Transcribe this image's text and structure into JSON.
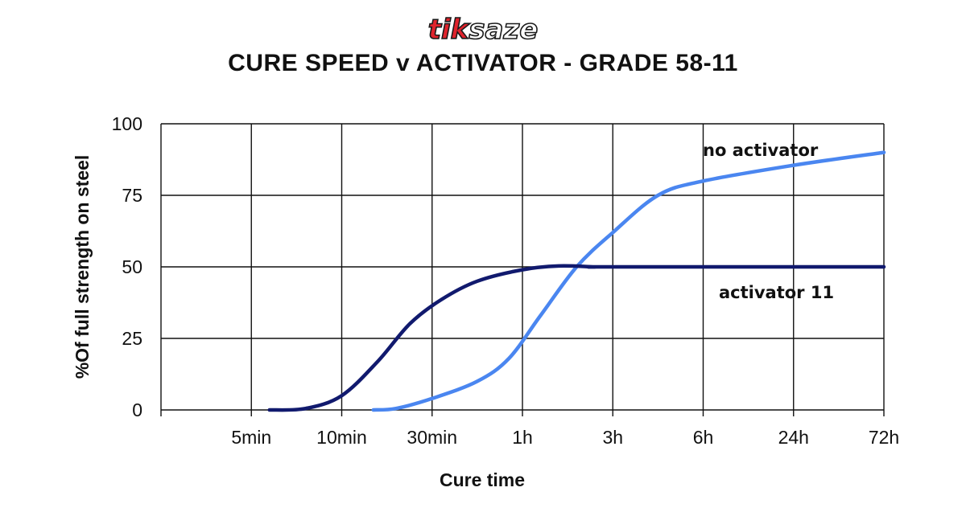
{
  "brand": {
    "logo_text": "tiksaze",
    "logo_part1": "tik",
    "logo_part2": "saze",
    "color1": "#e0232c",
    "color2": "#ffffff",
    "outline": "#1a1a1a"
  },
  "chart_data": {
    "type": "line",
    "title": "CURE SPEED v ACTIVATOR - GRADE 58-11",
    "xlabel": "Cure time",
    "ylabel": "%Of full  strength on steel",
    "categories": [
      "",
      "5min",
      "10min",
      "30min",
      "1h",
      "3h",
      "6h",
      "24h",
      "72h"
    ],
    "ylim": [
      0,
      100
    ],
    "yticks": [
      0,
      25,
      50,
      75,
      100
    ],
    "grid": true,
    "series": [
      {
        "name": "no activator",
        "color": "#4a86f0",
        "points": [
          [
            2.35,
            0
          ],
          [
            2.6,
            0.5
          ],
          [
            3,
            4
          ],
          [
            3.5,
            10
          ],
          [
            3.85,
            18
          ],
          [
            4.2,
            33
          ],
          [
            4.6,
            50
          ],
          [
            5,
            62
          ],
          [
            5.5,
            75
          ],
          [
            6,
            80
          ],
          [
            7,
            85.5
          ],
          [
            8,
            90
          ]
        ]
      },
      {
        "name": "activator 11",
        "color": "#111a6e",
        "points": [
          [
            1.2,
            0
          ],
          [
            1.6,
            0.5
          ],
          [
            2,
            5
          ],
          [
            2.4,
            17
          ],
          [
            2.75,
            30
          ],
          [
            3.1,
            38.5
          ],
          [
            3.5,
            45
          ],
          [
            4,
            49
          ],
          [
            4.4,
            50.3
          ],
          [
            4.8,
            50
          ],
          [
            5,
            50
          ],
          [
            8,
            50
          ]
        ]
      }
    ]
  }
}
